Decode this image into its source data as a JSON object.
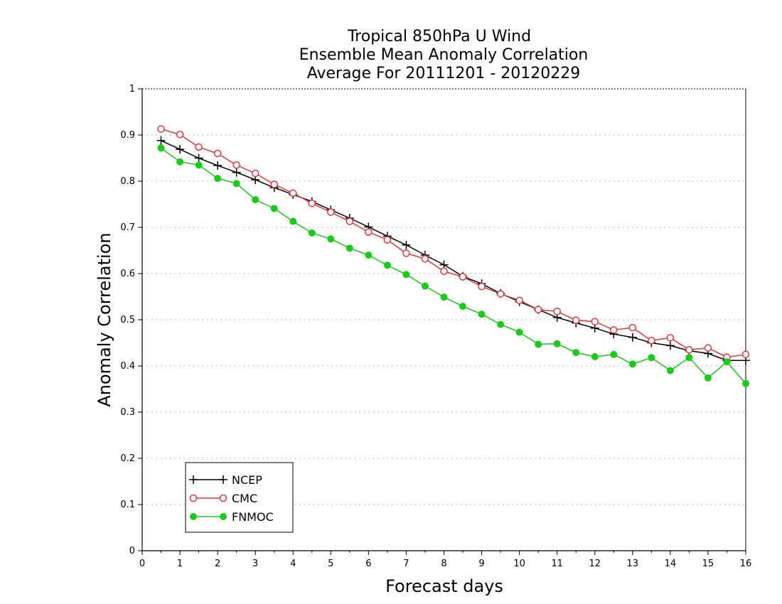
{
  "chart_data": {
    "type": "line",
    "title": [
      "Tropical 850hPa U Wind",
      "Ensemble Mean Anomaly Correlation",
      "Average For 20111201 - 20120229"
    ],
    "xlabel": "Forecast days",
    "ylabel": "Anomaly Correlation",
    "xlim": [
      0,
      16
    ],
    "ylim": [
      0,
      1
    ],
    "xticks": [
      "0",
      "1",
      "2",
      "3",
      "4",
      "5",
      "6",
      "7",
      "8",
      "9",
      "10",
      "11",
      "12",
      "13",
      "14",
      "15",
      "16"
    ],
    "yticks": [
      "0",
      "0.1",
      "0.2",
      "0.3",
      "0.4",
      "0.5",
      "0.6",
      "0.7",
      "0.8",
      "0.9",
      "1"
    ],
    "grid": "horizontal dotted",
    "legend_position": "bottom-left",
    "x": [
      0.5,
      1,
      1.5,
      2,
      2.5,
      3,
      3.5,
      4,
      4.5,
      5,
      5.5,
      6,
      6.5,
      7,
      7.5,
      8,
      8.5,
      9,
      9.5,
      10,
      10.5,
      11,
      11.5,
      12,
      12.5,
      13,
      13.5,
      14,
      14.5,
      15,
      15.5,
      16
    ],
    "series": [
      {
        "name": "NCEP",
        "color": "#000000",
        "marker": "plus",
        "values": [
          0.888,
          0.869,
          0.85,
          0.834,
          0.819,
          0.803,
          0.786,
          0.771,
          0.756,
          0.738,
          0.72,
          0.701,
          0.681,
          0.662,
          0.64,
          0.619,
          0.594,
          0.578,
          0.557,
          0.539,
          0.522,
          0.505,
          0.493,
          0.482,
          0.469,
          0.462,
          0.45,
          0.444,
          0.433,
          0.427,
          0.412,
          0.412
        ]
      },
      {
        "name": "CMC",
        "color": "#e8363a",
        "marker": "open-circle",
        "values": [
          0.913,
          0.901,
          0.874,
          0.86,
          0.835,
          0.817,
          0.793,
          0.774,
          0.752,
          0.733,
          0.713,
          0.69,
          0.673,
          0.644,
          0.632,
          0.605,
          0.593,
          0.572,
          0.556,
          0.542,
          0.522,
          0.518,
          0.499,
          0.496,
          0.478,
          0.483,
          0.455,
          0.461,
          0.435,
          0.439,
          0.419,
          0.425
        ]
      },
      {
        "name": "FNMOC",
        "color": "#18cc18",
        "marker": "filled-circle",
        "values": [
          0.872,
          0.842,
          0.835,
          0.806,
          0.795,
          0.76,
          0.741,
          0.713,
          0.688,
          0.675,
          0.655,
          0.64,
          0.618,
          0.598,
          0.573,
          0.549,
          0.529,
          0.512,
          0.49,
          0.473,
          0.447,
          0.448,
          0.429,
          0.42,
          0.425,
          0.404,
          0.418,
          0.39,
          0.418,
          0.374,
          0.409,
          0.362
        ]
      }
    ]
  }
}
